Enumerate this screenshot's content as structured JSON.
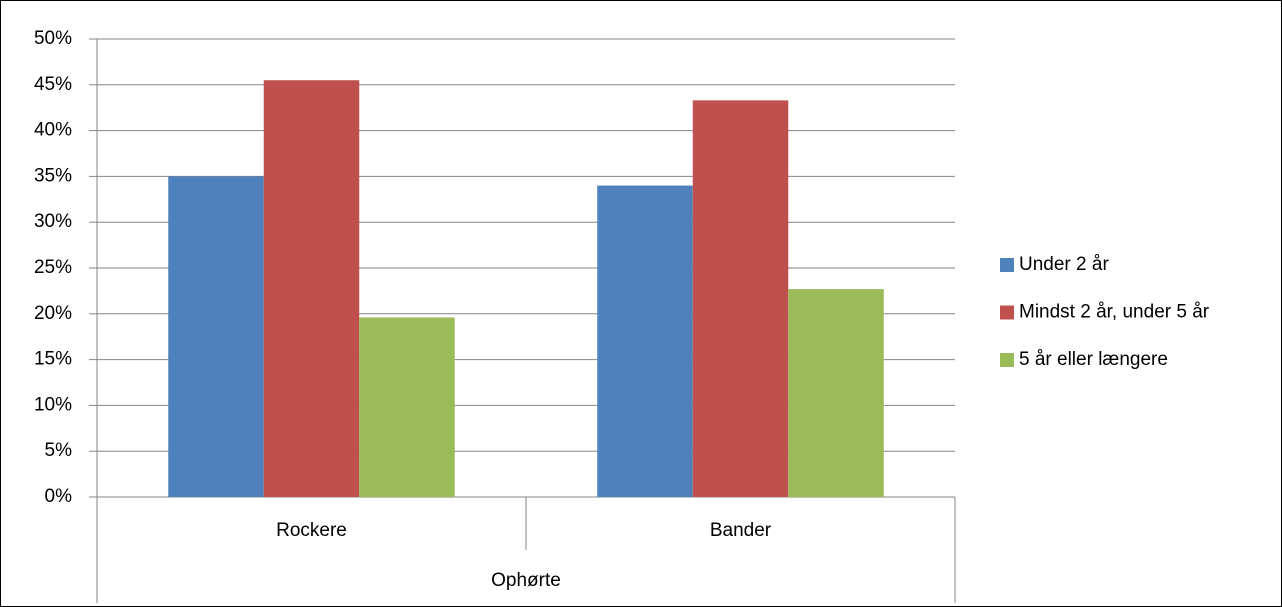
{
  "chart_data": {
    "type": "bar",
    "categories": [
      "Rockere",
      "Bander"
    ],
    "category_group": "Ophørte",
    "series": [
      {
        "name": "Under 2 år",
        "color": "#4f81bd",
        "values": [
          35,
          34
        ]
      },
      {
        "name": "Mindst 2 år, under 5 år",
        "color": "#c0504d",
        "values": [
          45.5,
          43.3
        ]
      },
      {
        "name": "5 år eller længere",
        "color": "#9bbb59",
        "values": [
          19.6,
          22.7
        ]
      }
    ],
    "ylim": [
      0,
      50
    ],
    "yticks": [
      {
        "value": 0,
        "label": "0%"
      },
      {
        "value": 5,
        "label": "5%"
      },
      {
        "value": 10,
        "label": "10%"
      },
      {
        "value": 15,
        "label": "15%"
      },
      {
        "value": 20,
        "label": "20%"
      },
      {
        "value": 25,
        "label": "25%"
      },
      {
        "value": 30,
        "label": "30%"
      },
      {
        "value": 35,
        "label": "35%"
      },
      {
        "value": 40,
        "label": "40%"
      },
      {
        "value": 45,
        "label": "45%"
      },
      {
        "value": 50,
        "label": "50%"
      }
    ],
    "grid": true,
    "legend": "right"
  }
}
